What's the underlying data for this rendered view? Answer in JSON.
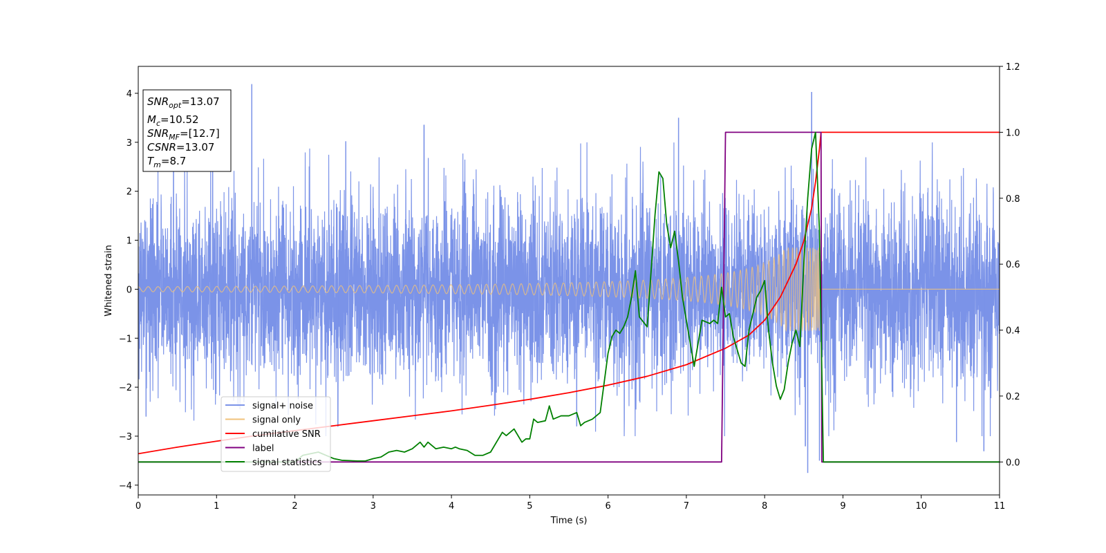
{
  "chart_data": {
    "type": "line",
    "xlabel": "Time (s)",
    "ylabel": "Whitened strain",
    "xlim": [
      0,
      11
    ],
    "ylim_left": [
      -4.2,
      4.55
    ],
    "ylim_right": [
      -0.1,
      1.2
    ],
    "x_ticks": [
      0,
      1,
      2,
      3,
      4,
      5,
      6,
      7,
      8,
      9,
      10,
      11
    ],
    "y_ticks_left": [
      4,
      3,
      2,
      1,
      0,
      -1,
      -2,
      -3,
      -4
    ],
    "y_ticks_left_labels": [
      "4",
      "3",
      "2",
      "1",
      "0",
      "−1",
      "−2",
      "−3",
      "−4"
    ],
    "y_ticks_right": [
      1.2,
      1.0,
      0.8,
      0.6,
      0.4,
      0.2,
      0.0
    ],
    "y_ticks_right_labels": [
      "1.2",
      "1.0",
      "0.8",
      "0.6",
      "0.4",
      "0.2",
      "0.0"
    ],
    "grid": false,
    "legend_position": "lower-left",
    "colors": {
      "noise": "#7b93e8",
      "signal": "#f0c27a",
      "cumulative_snr": "#ff0000",
      "label": "#800080",
      "statistics": "#008000"
    },
    "annotation": {
      "lines": [
        {
          "main": "SNR",
          "sub": "opt",
          "rest": "=13.07"
        },
        {
          "main": "M",
          "sub": "c",
          "rest": "=10.52"
        },
        {
          "main": "SNR",
          "sub": "MF",
          "rest": "=[12.7]"
        },
        {
          "main": "CSNR",
          "sub": "",
          "rest": "=13.07"
        },
        {
          "main": "T",
          "sub": "m",
          "rest": "=8.7"
        }
      ]
    },
    "series": [
      {
        "name": "signal+ noise",
        "axis": "left",
        "envelope": {
          "t_end": 11.0,
          "abs_amplitude_p99": 2.6
        },
        "spikes": [
          {
            "x": 1.45,
            "y": 4.18
          },
          {
            "x": 0.45,
            "y": 2.95
          },
          {
            "x": 0.95,
            "y": 3.0
          },
          {
            "x": 2.65,
            "y": 3.02
          },
          {
            "x": 3.65,
            "y": 3.35
          },
          {
            "x": 6.9,
            "y": 3.5
          },
          {
            "x": 8.6,
            "y": 4.02
          },
          {
            "x": 8.55,
            "y": -3.75
          },
          {
            "x": 8.52,
            "y": -3.2
          },
          {
            "x": 0.1,
            "y": -2.6
          },
          {
            "x": 2.55,
            "y": -2.8
          },
          {
            "x": 5.6,
            "y": -2.8
          },
          {
            "x": 10.45,
            "y": -3.12
          },
          {
            "x": 10.8,
            "y": -3.3
          },
          {
            "x": 8.7,
            "y": -3.5
          }
        ]
      },
      {
        "name": "signal only",
        "axis": "left",
        "chirp": {
          "t_start": 0,
          "t_merge": 8.7,
          "amplitude_start": 0.05,
          "amplitude_peak": 0.85
        }
      },
      {
        "name": "cumilative SNR",
        "axis": "right",
        "x": [
          0,
          0.5,
          1,
          1.5,
          2,
          2.5,
          3,
          3.5,
          4,
          4.5,
          5,
          5.5,
          6,
          6.5,
          7,
          7.5,
          7.8,
          8.0,
          8.2,
          8.4,
          8.5,
          8.6,
          8.65,
          8.7,
          8.72,
          11
        ],
        "y": [
          0.025,
          0.045,
          0.063,
          0.08,
          0.095,
          0.11,
          0.125,
          0.14,
          0.155,
          0.172,
          0.19,
          0.21,
          0.233,
          0.26,
          0.295,
          0.345,
          0.385,
          0.43,
          0.5,
          0.6,
          0.67,
          0.77,
          0.85,
          0.95,
          1.0,
          1.0
        ]
      },
      {
        "name": "label",
        "axis": "right",
        "x": [
          0,
          7.45,
          7.5,
          8.72,
          8.73,
          11
        ],
        "y": [
          0.0,
          0.0,
          1.0,
          1.0,
          0.0,
          0.0
        ]
      },
      {
        "name": "signal statistics",
        "axis": "right",
        "x": [
          0,
          0.5,
          1,
          1.5,
          2.0,
          2.1,
          2.2,
          2.3,
          2.4,
          2.5,
          2.6,
          2.8,
          2.9,
          3.0,
          3.1,
          3.2,
          3.3,
          3.4,
          3.5,
          3.6,
          3.65,
          3.7,
          3.75,
          3.8,
          3.9,
          4.0,
          4.05,
          4.1,
          4.2,
          4.3,
          4.4,
          4.5,
          4.6,
          4.65,
          4.7,
          4.8,
          4.9,
          4.95,
          5.0,
          5.05,
          5.1,
          5.2,
          5.25,
          5.3,
          5.4,
          5.5,
          5.6,
          5.65,
          5.7,
          5.8,
          5.9,
          5.95,
          6.0,
          6.05,
          6.1,
          6.15,
          6.2,
          6.25,
          6.3,
          6.35,
          6.4,
          6.5,
          6.55,
          6.6,
          6.65,
          6.7,
          6.75,
          6.8,
          6.85,
          6.9,
          6.95,
          7.0,
          7.05,
          7.1,
          7.15,
          7.2,
          7.3,
          7.35,
          7.4,
          7.45,
          7.5,
          7.55,
          7.6,
          7.7,
          7.75,
          7.8,
          7.9,
          7.95,
          8.0,
          8.05,
          8.1,
          8.15,
          8.2,
          8.25,
          8.3,
          8.35,
          8.4,
          8.45,
          8.5,
          8.55,
          8.6,
          8.65,
          8.7,
          8.75,
          8.8,
          9,
          10,
          11
        ],
        "y": [
          0.0,
          0.0,
          0.0,
          0.0,
          0.0,
          0.02,
          0.025,
          0.03,
          0.02,
          0.01,
          0.005,
          0.003,
          0.003,
          0.01,
          0.015,
          0.03,
          0.035,
          0.03,
          0.04,
          0.06,
          0.045,
          0.06,
          0.05,
          0.04,
          0.045,
          0.04,
          0.045,
          0.04,
          0.035,
          0.02,
          0.02,
          0.03,
          0.07,
          0.09,
          0.08,
          0.1,
          0.06,
          0.07,
          0.07,
          0.13,
          0.12,
          0.125,
          0.17,
          0.13,
          0.14,
          0.14,
          0.15,
          0.11,
          0.12,
          0.13,
          0.15,
          0.24,
          0.33,
          0.38,
          0.4,
          0.39,
          0.41,
          0.44,
          0.5,
          0.58,
          0.44,
          0.41,
          0.58,
          0.75,
          0.88,
          0.86,
          0.72,
          0.65,
          0.7,
          0.61,
          0.5,
          0.43,
          0.36,
          0.29,
          0.36,
          0.43,
          0.42,
          0.43,
          0.42,
          0.53,
          0.44,
          0.45,
          0.38,
          0.3,
          0.29,
          0.4,
          0.5,
          0.52,
          0.55,
          0.4,
          0.3,
          0.23,
          0.19,
          0.22,
          0.3,
          0.36,
          0.4,
          0.35,
          0.6,
          0.8,
          0.95,
          1.0,
          0.7,
          0.0,
          0.0,
          0.0,
          0.0,
          0.0
        ]
      }
    ]
  }
}
